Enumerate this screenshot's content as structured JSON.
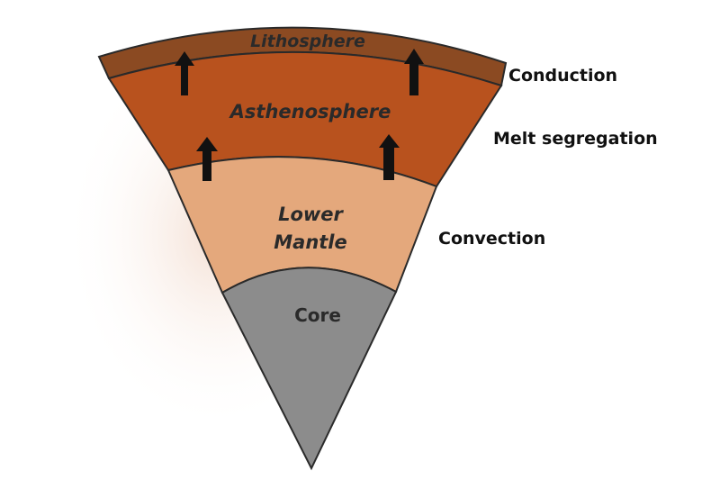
{
  "layers": {
    "lithosphere": {
      "label": "Lithosphere",
      "color": "#8B4A22"
    },
    "asthenosphere": {
      "label": "Asthenosphere",
      "color": "#B8521E"
    },
    "lower_mantle": {
      "label_line1": "Lower",
      "label_line2": "Mantle",
      "color": "#E4A87C"
    },
    "core": {
      "label": "Core",
      "color": "#8C8C8C"
    }
  },
  "processes": {
    "conduction": "Conduction",
    "melt_segregation": "Melt segregation",
    "convection": "Convection"
  },
  "arrows": {
    "color": "#111111",
    "icon": "up-arrow-icon"
  }
}
